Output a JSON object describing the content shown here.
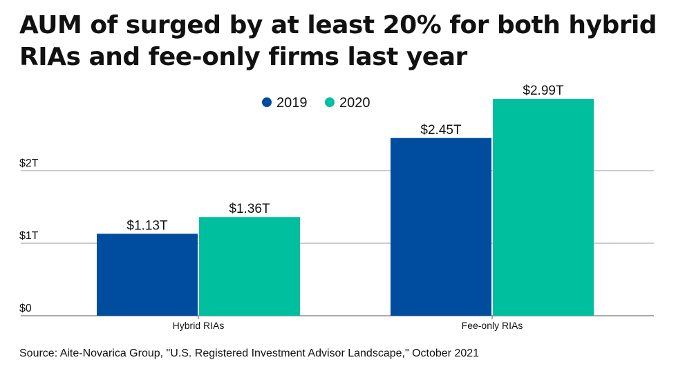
{
  "title": "AUM of surged by at least 20% for both hybrid RIAs and fee-only firms last year",
  "source": "Source: Aite-Novarica Group, \"U.S. Registered Investment Advisor Landscape,\" October 2021",
  "colors": {
    "2019": "#004d9f",
    "2020": "#00bf9f",
    "grid": "#999999",
    "axis": "#555555",
    "text": "#111111"
  },
  "chart_data": {
    "type": "bar",
    "categories": [
      "Hybrid RIAs",
      "Fee-only RIAs"
    ],
    "series": [
      {
        "name": "2019",
        "values": [
          1.13,
          2.45
        ],
        "labels": [
          "$1.13T",
          "$2.45T"
        ]
      },
      {
        "name": "2020",
        "values": [
          1.36,
          2.99
        ],
        "labels": [
          "$1.36T",
          "$2.99T"
        ]
      }
    ],
    "yticks": [
      0,
      1,
      2
    ],
    "ytick_labels": [
      "$0",
      "$1T",
      "$2T"
    ],
    "ylim": [
      0,
      3.3
    ],
    "grid": true,
    "legend_position": "top-center",
    "xlabel": "",
    "ylabel": ""
  }
}
